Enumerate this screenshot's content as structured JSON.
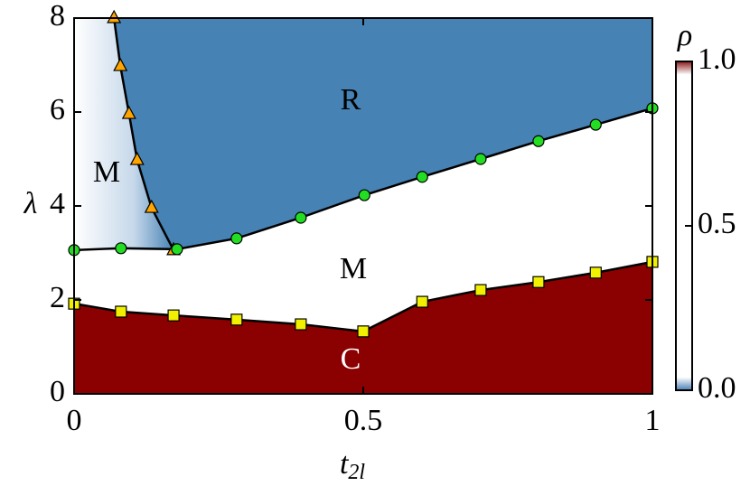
{
  "chart_data": {
    "type": "line",
    "x_label": "t",
    "x_label_subscript": "2l",
    "y_label": "λ",
    "xlim": [
      0,
      1
    ],
    "xticks": [
      0,
      0.5,
      1
    ],
    "ylim": [
      0,
      8
    ],
    "yticks": [
      0,
      2,
      4,
      6,
      8
    ],
    "series": [
      {
        "color": "#ffa500",
        "marker": "triangle",
        "x": [
          0.069,
          0.08,
          0.095,
          0.109,
          0.134,
          0.172
        ],
        "values": [
          8,
          6.98,
          5.96,
          4.98,
          3.96,
          3.06
        ]
      },
      {
        "color": "#22dd22",
        "marker": "circle",
        "x": [
          0,
          0.081,
          0.178,
          0.281,
          0.392,
          0.502,
          0.602,
          0.703,
          0.803,
          0.902,
          1.0
        ],
        "values": [
          3.06,
          3.1,
          3.08,
          3.31,
          3.75,
          4.23,
          4.62,
          5.0,
          5.38,
          5.73,
          6.08
        ]
      },
      {
        "color": "#f0f000",
        "marker": "square",
        "x": [
          0,
          0.081,
          0.172,
          0.281,
          0.392,
          0.5,
          0.602,
          0.703,
          0.803,
          0.902,
          1.0
        ],
        "values": [
          1.92,
          1.75,
          1.67,
          1.58,
          1.48,
          1.33,
          1.96,
          2.21,
          2.38,
          2.58,
          2.81
        ]
      }
    ],
    "annotations": [
      "R",
      "M",
      "M",
      "C"
    ],
    "colorbar": {
      "label": "ρ",
      "lim": [
        0,
        1
      ],
      "ticks": [
        {
          "value": 0,
          "label": "0.0"
        },
        {
          "value": 0.5,
          "label": "0.5"
        },
        {
          "value": 1,
          "label": "1.0"
        }
      ]
    }
  }
}
